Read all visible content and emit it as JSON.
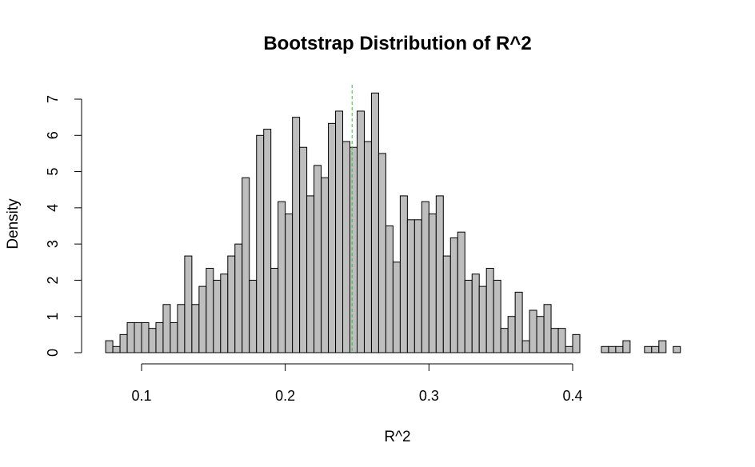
{
  "chart_data": {
    "type": "bar",
    "title": "Bootstrap Distribution of R^2",
    "xlabel": "R^2",
    "ylabel": "Density",
    "xlim": [
      0.07,
      0.48
    ],
    "ylim": [
      0,
      7.2
    ],
    "xticks": [
      0.1,
      0.2,
      0.3,
      0.4
    ],
    "xtick_labels": [
      "0.1",
      "0.2",
      "0.3",
      "0.4"
    ],
    "yticks": [
      0,
      1,
      2,
      3,
      4,
      5,
      6,
      7
    ],
    "ytick_labels": [
      "0",
      "1",
      "2",
      "3",
      "4",
      "5",
      "6",
      "7"
    ],
    "bin_start": 0.075,
    "bin_width": 0.005,
    "densities": [
      0.33,
      0.17,
      0.5,
      0.83,
      0.83,
      0.83,
      0.67,
      0.83,
      1.33,
      0.83,
      1.33,
      2.67,
      1.33,
      1.83,
      2.33,
      2.0,
      2.17,
      2.67,
      3.0,
      4.83,
      2.0,
      6.0,
      6.17,
      2.33,
      4.17,
      3.83,
      6.5,
      5.67,
      4.33,
      5.17,
      4.83,
      6.33,
      6.67,
      5.83,
      5.67,
      6.67,
      5.83,
      7.17,
      5.5,
      3.5,
      2.5,
      4.33,
      3.67,
      3.67,
      4.17,
      3.83,
      4.33,
      2.67,
      3.17,
      3.33,
      2.0,
      2.17,
      1.83,
      2.33,
      2.0,
      0.67,
      1.0,
      1.67,
      0.33,
      1.17,
      1.0,
      1.33,
      0.67,
      0.67,
      0.17,
      0.5,
      0.0,
      0.0,
      0.0,
      0.17,
      0.17,
      0.17,
      0.33,
      0.0,
      0.0,
      0.17,
      0.17,
      0.33,
      0.0,
      0.17
    ],
    "reference_line": {
      "x": 0.2465,
      "color": "#22cc22",
      "style": "dashed"
    },
    "bar_fill": "#bebebe",
    "bar_stroke": "#000000",
    "grid": false,
    "legend": "none"
  }
}
